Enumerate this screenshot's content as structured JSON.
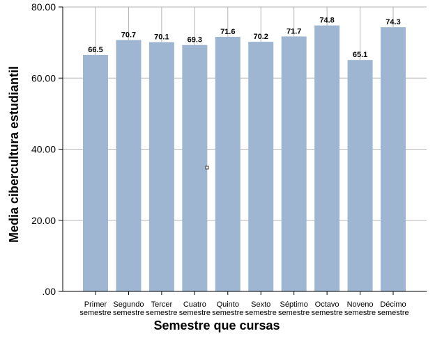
{
  "chart_data": {
    "type": "bar",
    "title": "",
    "xlabel": "Semestre que cursas",
    "ylabel": "Media cibercultura estudiantil",
    "ylim": [
      0,
      80
    ],
    "yticks": [
      ".00",
      "20.00",
      "40.00",
      "60.00",
      "80.00"
    ],
    "ytick_values": [
      0,
      20,
      40,
      60,
      80
    ],
    "grid": true,
    "bar_color": "#9fb6d3",
    "categories": [
      [
        "Primer",
        "semestre"
      ],
      [
        "Segundo",
        "semestre"
      ],
      [
        "Tercer",
        "semestre"
      ],
      [
        "Cuatro",
        "semestre"
      ],
      [
        "Quinto",
        "semestre"
      ],
      [
        "Sexto",
        "semestre"
      ],
      [
        "Séptimo",
        "semestre"
      ],
      [
        "Octavo",
        "semestre"
      ],
      [
        "Noveno",
        "semestre"
      ],
      [
        "Décimo",
        "semestre"
      ]
    ],
    "values": [
      66.5,
      70.7,
      70.1,
      69.3,
      71.6,
      70.2,
      71.7,
      74.8,
      65.1,
      74.3
    ],
    "value_labels": [
      "66.5",
      "70.7",
      "70.1",
      "69.3",
      "71.6",
      "70.2",
      "71.7",
      "74.8",
      "65.1",
      "74.3"
    ]
  }
}
